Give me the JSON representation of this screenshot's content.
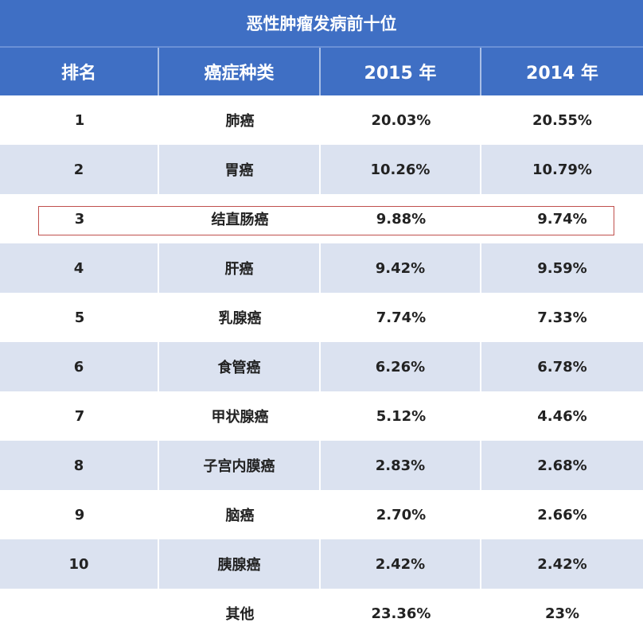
{
  "title": "恶性肿瘤发病前十位",
  "headers": [
    "排名",
    "癌症种类",
    "2015 年",
    "2014 年"
  ],
  "rows": [
    {
      "rank": "1",
      "type": "肺癌",
      "y2015": "20.03%",
      "y2014": "20.55%"
    },
    {
      "rank": "2",
      "type": "胃癌",
      "y2015": "10.26%",
      "y2014": "10.79%"
    },
    {
      "rank": "3",
      "type": "结直肠癌",
      "y2015": "9.88%",
      "y2014": "9.74%"
    },
    {
      "rank": "4",
      "type": "肝癌",
      "y2015": "9.42%",
      "y2014": "9.59%"
    },
    {
      "rank": "5",
      "type": "乳腺癌",
      "y2015": "7.74%",
      "y2014": "7.33%"
    },
    {
      "rank": "6",
      "type": "食管癌",
      "y2015": "6.26%",
      "y2014": "6.78%"
    },
    {
      "rank": "7",
      "type": "甲状腺癌",
      "y2015": "5.12%",
      "y2014": "4.46%"
    },
    {
      "rank": "8",
      "type": "子宫内膜癌",
      "y2015": "2.83%",
      "y2014": "2.68%"
    },
    {
      "rank": "9",
      "type": "脑癌",
      "y2015": "2.70%",
      "y2014": "2.66%"
    },
    {
      "rank": "10",
      "type": "胰腺癌",
      "y2015": "2.42%",
      "y2014": "2.42%"
    },
    {
      "rank": "",
      "type": "其他",
      "y2015": "23.36%",
      "y2014": "23%"
    }
  ],
  "highlighted_rank": "3",
  "colors": {
    "header": "#3f6fc4",
    "alt_row": "#dbe2f0",
    "highlight": "#c0504d"
  }
}
